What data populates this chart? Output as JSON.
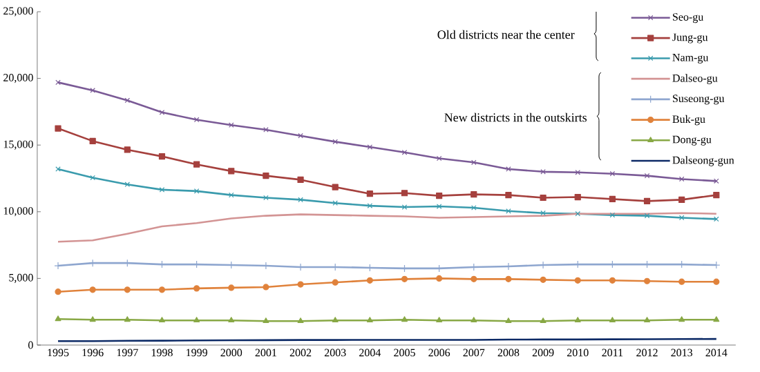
{
  "chart_data": {
    "type": "line",
    "categories": [
      "1995",
      "1996",
      "1997",
      "1998",
      "1999",
      "2000",
      "2001",
      "2002",
      "2003",
      "2004",
      "2005",
      "2006",
      "2007",
      "2008",
      "2009",
      "2010",
      "2011",
      "2012",
      "2013",
      "2014"
    ],
    "ylim": [
      0,
      25000
    ],
    "yticks": [
      {
        "value": 0,
        "label": "0"
      },
      {
        "value": 5000,
        "label": "5,000"
      },
      {
        "value": 10000,
        "label": "10,000"
      },
      {
        "value": 15000,
        "label": "15,000"
      },
      {
        "value": 20000,
        "label": "20,000"
      },
      {
        "value": 25000,
        "label": "25,000"
      }
    ],
    "grid": false,
    "legend": "top right",
    "annotations": [
      "Old districts near the center",
      "New districts in the outskirts"
    ],
    "series": [
      {
        "name": "Seo-gu",
        "color": "#7a5a96",
        "marker": "cross",
        "values": [
          19700,
          19100,
          18350,
          17450,
          16900,
          16500,
          16150,
          15700,
          15250,
          14850,
          14450,
          14000,
          13700,
          13200,
          13000,
          12950,
          12850,
          12700,
          12450,
          12300
        ]
      },
      {
        "name": "Jung-gu",
        "color": "#a5403d",
        "marker": "square",
        "values": [
          16250,
          15300,
          14650,
          14150,
          13550,
          13050,
          12700,
          12400,
          11850,
          11350,
          11400,
          11200,
          11300,
          11250,
          11050,
          11100,
          10950,
          10800,
          10900,
          11250
        ]
      },
      {
        "name": "Nam-gu",
        "color": "#3a9bad",
        "marker": "cross",
        "values": [
          13200,
          12550,
          12050,
          11650,
          11550,
          11250,
          11050,
          10900,
          10650,
          10450,
          10350,
          10400,
          10300,
          10050,
          9900,
          9850,
          9750,
          9700,
          9550,
          9450
        ]
      },
      {
        "name": "Dalseo-gu",
        "color": "#d39494",
        "marker": "none",
        "values": [
          7750,
          7850,
          8350,
          8900,
          9150,
          9500,
          9700,
          9800,
          9750,
          9700,
          9650,
          9550,
          9600,
          9650,
          9700,
          9850,
          9850,
          9850,
          9900,
          9850
        ]
      },
      {
        "name": "Suseong-gu",
        "color": "#8ea6cf",
        "marker": "plus",
        "values": [
          5950,
          6150,
          6150,
          6050,
          6050,
          6000,
          5950,
          5850,
          5850,
          5800,
          5750,
          5750,
          5850,
          5900,
          6000,
          6050,
          6050,
          6050,
          6050,
          6000
        ]
      },
      {
        "name": "Buk-gu",
        "color": "#e0823b",
        "marker": "circle",
        "values": [
          4000,
          4150,
          4150,
          4150,
          4250,
          4300,
          4350,
          4550,
          4700,
          4850,
          4950,
          5000,
          4950,
          4950,
          4900,
          4850,
          4850,
          4800,
          4750,
          4750
        ]
      },
      {
        "name": "Dong-gu",
        "color": "#88a845",
        "marker": "triangle",
        "values": [
          1950,
          1900,
          1900,
          1850,
          1850,
          1850,
          1800,
          1800,
          1850,
          1850,
          1900,
          1850,
          1850,
          1800,
          1800,
          1850,
          1850,
          1850,
          1900,
          1900
        ]
      },
      {
        "name": "Dalseong-gun",
        "color": "#0c2a66",
        "marker": "none",
        "values": [
          300,
          300,
          320,
          330,
          350,
          360,
          370,
          380,
          380,
          390,
          390,
          390,
          390,
          410,
          420,
          420,
          430,
          440,
          450,
          460
        ]
      }
    ]
  }
}
